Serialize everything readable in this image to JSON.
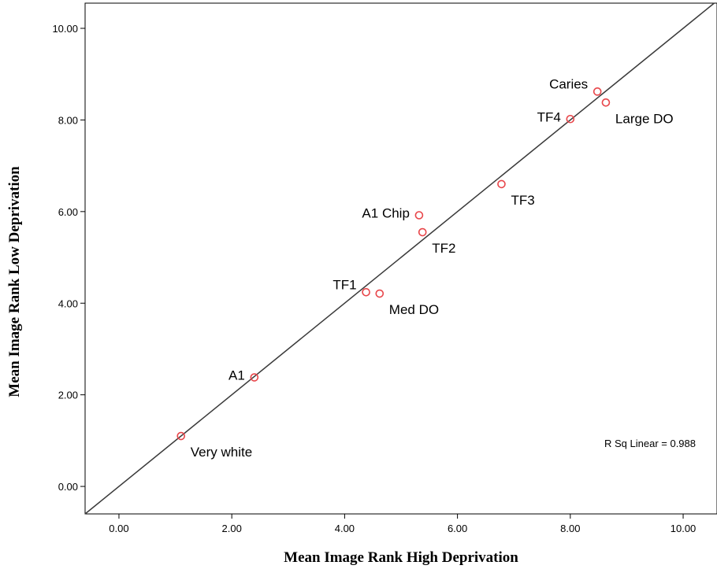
{
  "chart_data": {
    "type": "scatter",
    "xlabel": "Mean Image Rank High Deprivation",
    "ylabel": "Mean Image Rank Low Deprivation",
    "xlim": [
      -0.6,
      10.6
    ],
    "ylim": [
      -0.6,
      10.55
    ],
    "xticks": [
      "0.00",
      "2.00",
      "4.00",
      "6.00",
      "8.00",
      "10.00"
    ],
    "yticks": [
      "0.00",
      "2.00",
      "4.00",
      "6.00",
      "8.00",
      "10.00"
    ],
    "xtick_values": [
      0,
      2,
      4,
      6,
      8,
      10
    ],
    "ytick_values": [
      0,
      2,
      4,
      6,
      8,
      10
    ],
    "grid": false,
    "points": [
      {
        "label": "Very white",
        "x": 1.1,
        "y": 1.1,
        "label_pos": "below-right"
      },
      {
        "label": "A1",
        "x": 2.4,
        "y": 2.38,
        "label_pos": "left"
      },
      {
        "label": "TF1",
        "x": 4.38,
        "y": 4.24,
        "label_pos": "upper-left"
      },
      {
        "label": "Med DO",
        "x": 4.62,
        "y": 4.21,
        "label_pos": "below-right"
      },
      {
        "label": "TF2",
        "x": 5.38,
        "y": 5.55,
        "label_pos": "below-right"
      },
      {
        "label": "A1 Chip",
        "x": 5.32,
        "y": 5.92,
        "label_pos": "left"
      },
      {
        "label": "TF3",
        "x": 6.78,
        "y": 6.6,
        "label_pos": "below-right"
      },
      {
        "label": "TF4",
        "x": 8.0,
        "y": 8.02,
        "label_pos": "left"
      },
      {
        "label": "Caries",
        "x": 8.48,
        "y": 8.62,
        "label_pos": "upper-left"
      },
      {
        "label": "Large DO",
        "x": 8.63,
        "y": 8.38,
        "label_pos": "below-right"
      }
    ],
    "fit_line": {
      "type": "linear",
      "slope": 1.0,
      "intercept": 0.0
    },
    "annotation": "R Sq Linear = 0.988",
    "marker_color": "#e8464a",
    "line_color": "#3a3a3a"
  }
}
